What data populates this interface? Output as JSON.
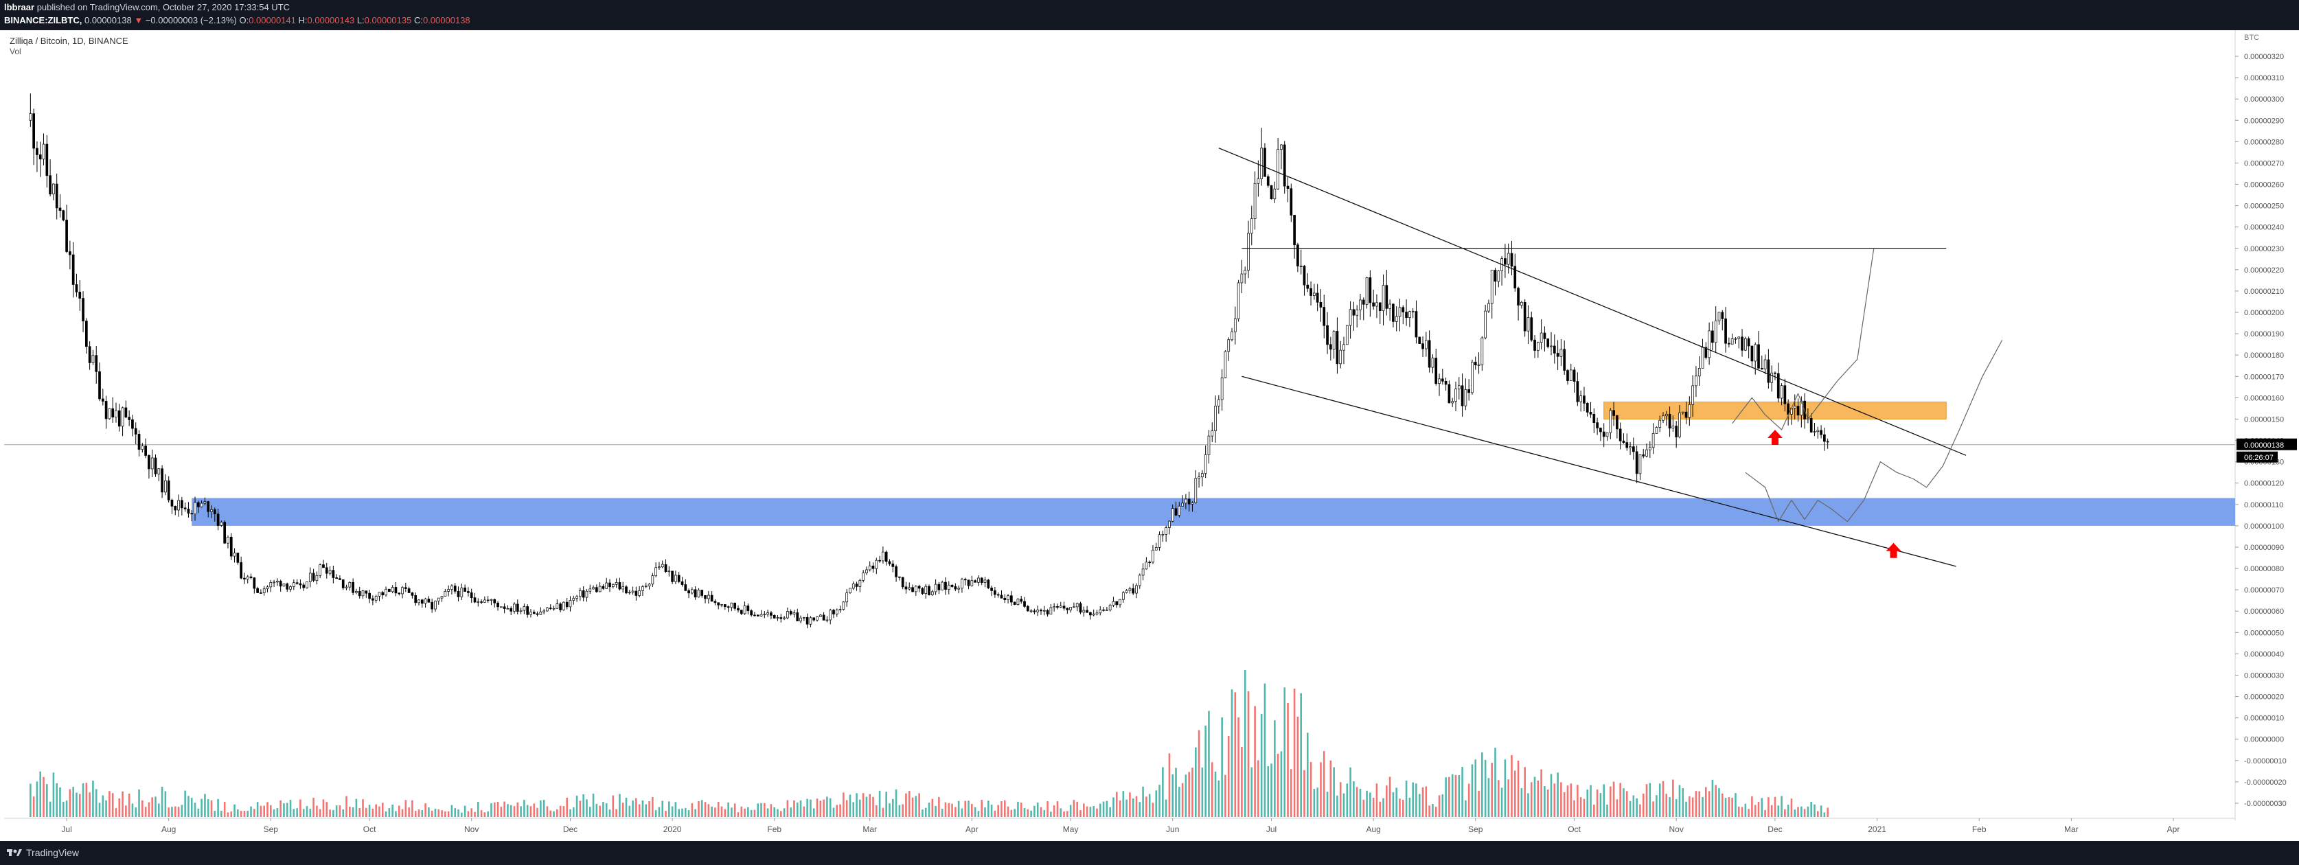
{
  "header": {
    "author": "lbbraar",
    "published_text": "published on TradingView.com, October 27, 2020 17:33:54 UTC",
    "symbol": "BINANCE:ZILBTC,",
    "price": "0.00000138",
    "change_arrow": "▼",
    "change": "−0.00000003 (−2.13%)",
    "open_label": "O:",
    "open": "0.00000141",
    "high_label": "H:",
    "high": "0.00000143",
    "low_label": "L:",
    "low": "0.00000135",
    "close_label": "C:",
    "close": "0.00000138"
  },
  "legend": {
    "title": "Zilliqa / Bitcoin, 1D, BINANCE",
    "volume_label": "Vol"
  },
  "footer": {
    "brand": "TradingView",
    "logo_icon": "tradingview-logo-icon"
  },
  "colors": {
    "up": "#26a69a",
    "down": "#ef5350",
    "candle": "#000000",
    "orange_zone": "#f7b75a",
    "blue_zone": "#7ca2ee",
    "price_tag": "#000000",
    "arrow": "#ff0000",
    "header_bg": "#131722"
  },
  "chart_data": {
    "type": "candlestick",
    "currency_label": "BTC",
    "price_axis_ticks": [
      "0.00000320",
      "0.00000310",
      "0.00000300",
      "0.00000290",
      "0.00000280",
      "0.00000270",
      "0.00000260",
      "0.00000250",
      "0.00000240",
      "0.00000230",
      "0.00000220",
      "0.00000210",
      "0.00000200",
      "0.00000190",
      "0.00000180",
      "0.00000170",
      "0.00000160",
      "0.00000150",
      "0.00000140",
      "0.00000130",
      "0.00000120",
      "0.00000110",
      "0.00000100",
      "0.00000090",
      "0.00000080",
      "0.00000070",
      "0.00000060",
      "0.00000050",
      "0.00000040",
      "0.00000030",
      "0.00000020",
      "0.00000010",
      "0.00000000",
      "-0.00000010",
      "-0.00000020",
      "-0.00000030"
    ],
    "last_price_label": "0.00000138",
    "countdown_label": "06:26:07",
    "time_axis_labels": [
      "Jul",
      "Aug",
      "Sep",
      "Oct",
      "Nov",
      "Dec",
      "2020",
      "Feb",
      "Mar",
      "Apr",
      "May",
      "Jun",
      "Jul",
      "Aug",
      "Sep",
      "Oct",
      "Nov",
      "Dec",
      "2021",
      "Feb",
      "Mar",
      "Apr"
    ],
    "ylim": [
      -3e-07,
      3.2e-06
    ],
    "price_path": [
      [
        "2019-06-20",
        2.9e-06
      ],
      [
        "2019-06-24",
        2.7e-06
      ],
      [
        "2019-06-29",
        2.45e-06
      ],
      [
        "2019-07-03",
        2.15e-06
      ],
      [
        "2019-07-08",
        1.8e-06
      ],
      [
        "2019-07-13",
        1.55e-06
      ],
      [
        "2019-07-18",
        1.5e-06
      ],
      [
        "2019-07-23",
        1.4e-06
      ],
      [
        "2019-07-28",
        1.25e-06
      ],
      [
        "2019-08-03",
        1.1e-06
      ],
      [
        "2019-08-08",
        1.08e-06
      ],
      [
        "2019-08-14",
        1.1e-06
      ],
      [
        "2019-08-18",
        9.5e-07
      ],
      [
        "2019-08-23",
        7.8e-07
      ],
      [
        "2019-08-28",
        7e-07
      ],
      [
        "2019-09-04",
        7.4e-07
      ],
      [
        "2019-09-10",
        7e-07
      ],
      [
        "2019-09-17",
        8.2e-07
      ],
      [
        "2019-09-24",
        7.2e-07
      ],
      [
        "2019-10-01",
        6.7e-07
      ],
      [
        "2019-10-10",
        7e-07
      ],
      [
        "2019-10-20",
        6.2e-07
      ],
      [
        "2019-10-26",
        7e-07
      ],
      [
        "2019-11-03",
        6.6e-07
      ],
      [
        "2019-11-12",
        6.2e-07
      ],
      [
        "2019-11-20",
        6e-07
      ],
      [
        "2019-11-28",
        6.2e-07
      ],
      [
        "2019-12-07",
        7e-07
      ],
      [
        "2019-12-15",
        7.2e-07
      ],
      [
        "2019-12-22",
        6.8e-07
      ],
      [
        "2019-12-28",
        8.2e-07
      ],
      [
        "2020-01-05",
        7e-07
      ],
      [
        "2020-01-12",
        6.6e-07
      ],
      [
        "2020-01-20",
        6.2e-07
      ],
      [
        "2020-01-28",
        5.8e-07
      ],
      [
        "2020-02-05",
        5.8e-07
      ],
      [
        "2020-02-13",
        5.5e-07
      ],
      [
        "2020-02-20",
        6e-07
      ],
      [
        "2020-02-27",
        7.5e-07
      ],
      [
        "2020-03-05",
        8.5e-07
      ],
      [
        "2020-03-12",
        7.2e-07
      ],
      [
        "2020-03-19",
        7e-07
      ],
      [
        "2020-03-26",
        7.2e-07
      ],
      [
        "2020-04-02",
        7.5e-07
      ],
      [
        "2020-04-09",
        6.8e-07
      ],
      [
        "2020-04-16",
        6.3e-07
      ],
      [
        "2020-04-24",
        6e-07
      ],
      [
        "2020-05-01",
        6.2e-07
      ],
      [
        "2020-05-08",
        6e-07
      ],
      [
        "2020-05-15",
        6.4e-07
      ],
      [
        "2020-05-20",
        7e-07
      ],
      [
        "2020-05-25",
        8.5e-07
      ],
      [
        "2020-05-29",
        9.8e-07
      ],
      [
        "2020-06-02",
        1.08e-06
      ],
      [
        "2020-06-06",
        1.1e-06
      ],
      [
        "2020-06-10",
        1.28e-06
      ],
      [
        "2020-06-13",
        1.48e-06
      ],
      [
        "2020-06-16",
        1.7e-06
      ],
      [
        "2020-06-19",
        1.95e-06
      ],
      [
        "2020-06-22",
        2.15e-06
      ],
      [
        "2020-06-25",
        2.5e-06
      ],
      [
        "2020-06-28",
        2.7e-06
      ],
      [
        "2020-07-01",
        2.62e-06
      ],
      [
        "2020-07-04",
        2.7e-06
      ],
      [
        "2020-07-07",
        2.4e-06
      ],
      [
        "2020-07-10",
        2.15e-06
      ],
      [
        "2020-07-14",
        2.05e-06
      ],
      [
        "2020-07-18",
        1.9e-06
      ],
      [
        "2020-07-22",
        1.8e-06
      ],
      [
        "2020-07-26",
        2.05e-06
      ],
      [
        "2020-07-31",
        2.1e-06
      ],
      [
        "2020-08-05",
        2.05e-06
      ],
      [
        "2020-08-09",
        2e-06
      ],
      [
        "2020-08-13",
        1.95e-06
      ],
      [
        "2020-08-17",
        1.85e-06
      ],
      [
        "2020-08-21",
        1.68e-06
      ],
      [
        "2020-08-25",
        1.6e-06
      ],
      [
        "2020-08-29",
        1.62e-06
      ],
      [
        "2020-09-02",
        1.8e-06
      ],
      [
        "2020-09-06",
        2.2e-06
      ],
      [
        "2020-09-10",
        2.25e-06
      ],
      [
        "2020-09-14",
        2.05e-06
      ],
      [
        "2020-09-18",
        1.9e-06
      ],
      [
        "2020-09-22",
        1.85e-06
      ],
      [
        "2020-09-26",
        1.82e-06
      ],
      [
        "2020-09-30",
        1.7e-06
      ],
      [
        "2020-10-04",
        1.55e-06
      ],
      [
        "2020-10-08",
        1.42e-06
      ],
      [
        "2020-10-12",
        1.5e-06
      ],
      [
        "2020-10-16",
        1.4e-06
      ],
      [
        "2020-10-20",
        1.28e-06
      ],
      [
        "2020-10-24",
        1.35e-06
      ],
      [
        "2020-10-27",
        1.5e-06
      ],
      [
        "2020-10-31",
        1.45e-06
      ],
      [
        "2020-11-03",
        1.5e-06
      ],
      [
        "2020-11-07",
        1.72e-06
      ],
      [
        "2020-11-11",
        1.88e-06
      ],
      [
        "2020-11-14",
        1.98e-06
      ],
      [
        "2020-11-18",
        1.85e-06
      ],
      [
        "2020-11-22",
        1.82e-06
      ],
      [
        "2020-11-26",
        1.8e-06
      ],
      [
        "2020-11-30",
        1.7e-06
      ],
      [
        "2020-12-03",
        1.62e-06
      ],
      [
        "2020-12-06",
        1.5e-06
      ],
      [
        "2020-12-09",
        1.6e-06
      ],
      [
        "2020-12-11",
        1.5e-06
      ],
      [
        "2020-12-14",
        1.4e-06
      ],
      [
        "2020-12-17",
        1.38e-06
      ]
    ],
    "volume_peaks": [
      [
        "2019-06-20",
        8e-09
      ],
      [
        "2019-07-01",
        6e-09
      ],
      [
        "2019-07-10",
        5e-09
      ],
      [
        "2019-07-20",
        4e-09
      ],
      [
        "2019-08-04",
        4.5e-09
      ],
      [
        "2019-08-20",
        2e-09
      ],
      [
        "2019-09-20",
        3e-09
      ],
      [
        "2019-10-25",
        2e-09
      ],
      [
        "2019-11-22",
        2.5e-09
      ],
      [
        "2019-12-10",
        3.5e-09
      ],
      [
        "2019-12-28",
        3e-09
      ],
      [
        "2020-01-25",
        1.8e-09
      ],
      [
        "2020-02-20",
        3.5e-09
      ],
      [
        "2020-03-10",
        4e-09
      ],
      [
        "2020-03-20",
        3e-09
      ],
      [
        "2020-04-15",
        2.2e-09
      ],
      [
        "2020-05-10",
        2.5e-09
      ],
      [
        "2020-05-28",
        7e-09
      ],
      [
        "2020-06-10",
        1.5e-08
      ],
      [
        "2020-06-20",
        1.9e-08
      ],
      [
        "2020-06-26",
        2.5e-08
      ],
      [
        "2020-06-30",
        1.8e-08
      ],
      [
        "2020-07-06",
        2.2e-08
      ],
      [
        "2020-07-12",
        1.5e-08
      ],
      [
        "2020-07-20",
        9e-09
      ],
      [
        "2020-08-01",
        6e-09
      ],
      [
        "2020-08-20",
        5e-09
      ],
      [
        "2020-09-06",
        1e-08
      ],
      [
        "2020-09-15",
        8e-09
      ],
      [
        "2020-10-04",
        5e-09
      ],
      [
        "2020-10-28",
        5.5e-09
      ],
      [
        "2020-11-10",
        6e-09
      ],
      [
        "2020-11-20",
        3.5e-09
      ],
      [
        "2020-12-05",
        3e-09
      ],
      [
        "2020-12-17",
        1.5e-09
      ]
    ],
    "annotations": {
      "horizontal_line": 2.3e-06,
      "orange_zone": [
        1.5e-06,
        1.58e-06
      ],
      "blue_zone": [
        1e-06,
        1.13e-06
      ],
      "wedge_upper": [
        [
          "2020-06-15",
          2.77e-06
        ],
        [
          "2021-01-28",
          1.33e-06
        ]
      ],
      "wedge_lower": [
        [
          "2020-06-22",
          1.7e-06
        ],
        [
          "2021-01-25",
          8.1e-07
        ]
      ]
    }
  }
}
